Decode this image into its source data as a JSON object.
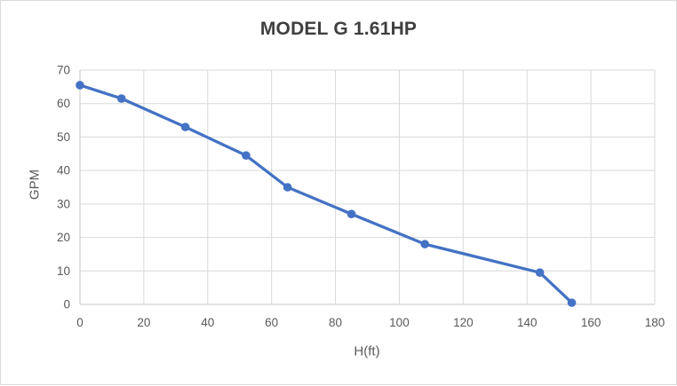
{
  "chart_data": {
    "type": "line",
    "title": "MODEL G 1.61HP",
    "xlabel": "H(ft)",
    "ylabel": "GPM",
    "xlim": [
      0,
      180
    ],
    "ylim": [
      0,
      70
    ],
    "x_ticks": [
      0,
      20,
      40,
      60,
      80,
      100,
      120,
      140,
      160,
      180
    ],
    "y_ticks": [
      0,
      10,
      20,
      30,
      40,
      50,
      60,
      70
    ],
    "x": [
      0,
      13,
      33,
      52,
      65,
      85,
      108,
      144,
      154
    ],
    "y": [
      65.5,
      61.5,
      53,
      44.5,
      35,
      27,
      18,
      9.5,
      0.5
    ],
    "grid": true,
    "legend": false,
    "marker": "circle",
    "colors": {
      "line": "#4472C4",
      "marker": "#4472C4",
      "gridline": "#d9d9d9",
      "axis_line": "#c6c6c6",
      "tick_text": "#595959",
      "title_text": "#3f3f3f",
      "frame_border": "#d9d9d9"
    }
  }
}
